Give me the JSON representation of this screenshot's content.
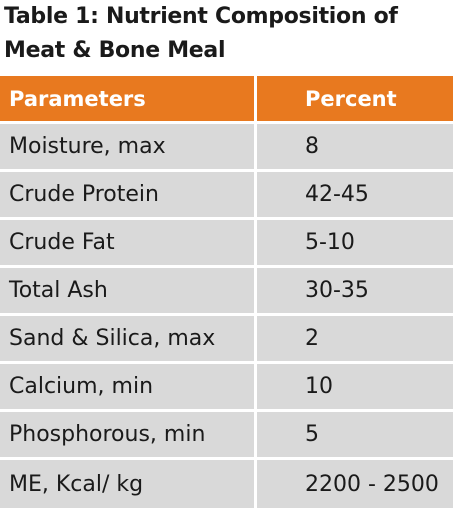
{
  "title": {
    "line1": "Table 1: Nutrient Composition of",
    "line2": "Meat & Bone Meal"
  },
  "table": {
    "headers": [
      "Parameters",
      "Percent"
    ],
    "rows": [
      [
        "Moisture, max",
        "8"
      ],
      [
        "Crude Protein",
        "42-45"
      ],
      [
        "Crude Fat",
        "5-10"
      ],
      [
        "Total Ash",
        "30-35"
      ],
      [
        "Sand & Silica, max",
        "2"
      ],
      [
        "Calcium, min",
        "10"
      ],
      [
        "Phosphorous, min",
        "5"
      ],
      [
        "ME, Kcal/ kg",
        "2200 - 2500"
      ]
    ]
  },
  "colors": {
    "header_bg": "#e8791f",
    "row_bg": "#d9d9d9"
  }
}
